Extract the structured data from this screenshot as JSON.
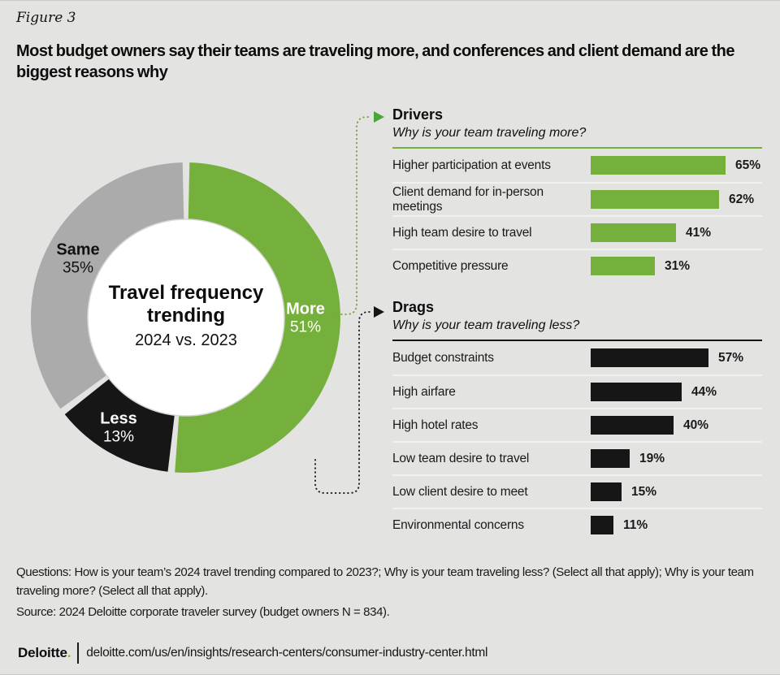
{
  "header": {
    "figure_label": "Figure 3",
    "title": "Most budget owners say their teams are traveling more, and conferences and client demand are the biggest reasons why"
  },
  "colors": {
    "background": "#e3e3e2",
    "green": "#75b03c",
    "black": "#161616",
    "gray_segment": "#ababab",
    "arrow_green": "#4da43a",
    "brand_dot_green": "#86bc25"
  },
  "chart_data": [
    {
      "type": "pie",
      "variant": "donut",
      "title": "Travel frequency trending",
      "subtitle": "2024 vs. 2023",
      "segments": [
        {
          "label": "More",
          "value": 51,
          "value_label": "51%",
          "color": "#75b03c"
        },
        {
          "label": "Less",
          "value": 13,
          "value_label": "13%",
          "color": "#161616"
        },
        {
          "label": "Same",
          "value": 35,
          "value_label": "35%",
          "color": "#ababab"
        }
      ]
    },
    {
      "type": "bar",
      "section_title": "Drivers",
      "question": "Why is your team traveling more?",
      "bar_color": "#75b03c",
      "categories": [
        "Higher participation at events",
        "Client demand for in-person meetings",
        "High team desire to travel",
        "Competitive pressure"
      ],
      "values": [
        65,
        62,
        41,
        31
      ],
      "value_labels": [
        "65%",
        "62%",
        "41%",
        "31%"
      ],
      "xlim": [
        0,
        100
      ],
      "legend": "none",
      "grid": "off"
    },
    {
      "type": "bar",
      "section_title": "Drags",
      "question": "Why is your team traveling less?",
      "bar_color": "#161616",
      "categories": [
        "Budget constraints",
        "High airfare",
        "High hotel rates",
        "Low team desire to travel",
        "Low client desire to meet",
        "Environmental concerns"
      ],
      "values": [
        57,
        44,
        40,
        19,
        15,
        11
      ],
      "value_labels": [
        "57%",
        "44%",
        "40%",
        "19%",
        "15%",
        "11%"
      ],
      "xlim": [
        0,
        100
      ],
      "legend": "none",
      "grid": "off"
    }
  ],
  "notes": {
    "questions": "Questions: How is your team’s 2024 travel trending compared to 2023?; Why is your team traveling less? (Select all that apply); Why is your team traveling more? (Select all that apply).",
    "source": "Source: 2024 Deloitte corporate traveler survey (budget owners N = 834)."
  },
  "footer": {
    "brand": "Deloitte",
    "brand_period": ".",
    "url": "deloitte.com/us/en/insights/research-centers/consumer-industry-center.html"
  }
}
